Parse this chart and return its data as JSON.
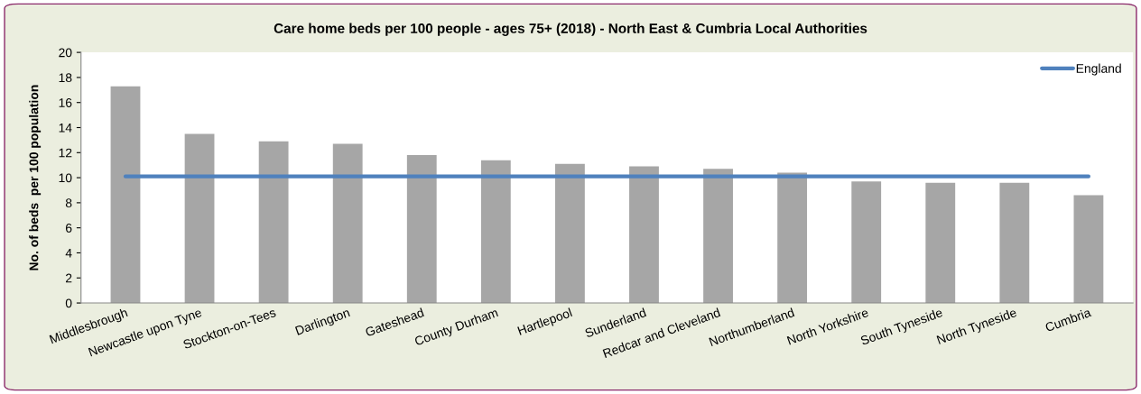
{
  "chart_data": {
    "type": "bar",
    "title": "Care home beds per 100 people - ages 75+ (2018) - North East & Cumbria Local Authorities",
    "ylabel": "No. of beds  per 100 population",
    "categories": [
      "Middlesbrough",
      "Newcastle upon Tyne",
      "Stockton-on-Tees",
      "Darlington",
      "Gateshead",
      "County Durham",
      "Hartlepool",
      "Sunderland",
      "Redcar and Cleveland",
      "Northumberland",
      "North Yorkshire",
      "South Tyneside",
      "North Tyneside",
      "Cumbria"
    ],
    "series": [
      {
        "color": "#a6a6a6",
        "values": [
          17.3,
          13.5,
          12.9,
          12.7,
          11.8,
          11.4,
          11.1,
          10.9,
          10.7,
          10.4,
          9.7,
          9.6,
          9.6,
          8.6
        ]
      },
      {
        "type": "line",
        "name": "England",
        "color": "#4f81bd",
        "values": [
          10.1,
          10.1,
          10.1,
          10.1,
          10.1,
          10.1,
          10.1,
          10.1,
          10.1,
          10.1,
          10.1,
          10.1,
          10.1,
          10.1
        ]
      }
    ],
    "ylim": [
      0,
      20
    ],
    "yticks": [
      0,
      2,
      4,
      6,
      8,
      10,
      12,
      14,
      16,
      18,
      20
    ],
    "grid": false,
    "legend": "top right",
    "marker": "none"
  }
}
